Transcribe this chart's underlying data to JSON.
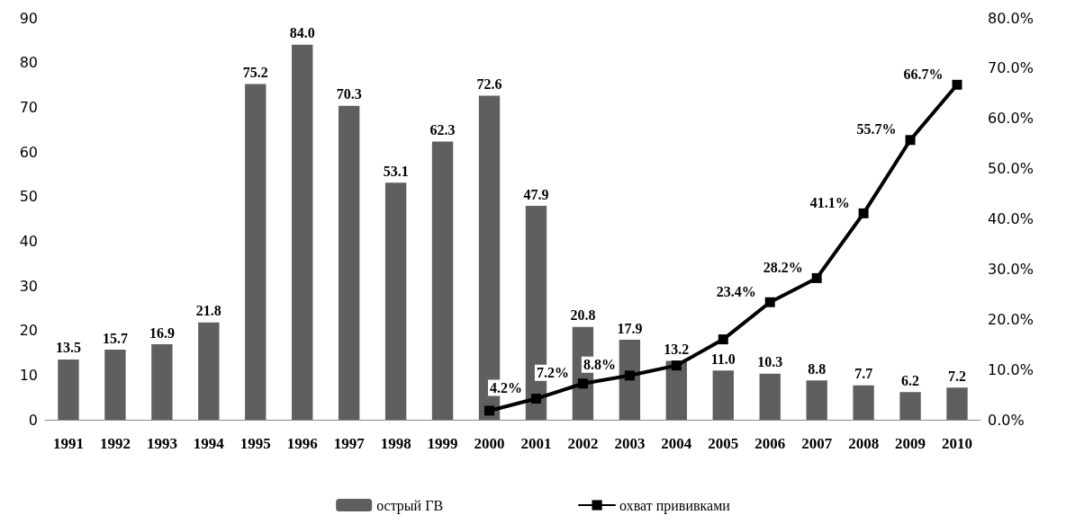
{
  "chart_data": {
    "type": "bar",
    "categories": [
      "1991",
      "1992",
      "1993",
      "1994",
      "1995",
      "1996",
      "1997",
      "1998",
      "1999",
      "2000",
      "2001",
      "2002",
      "2003",
      "2004",
      "2005",
      "2006",
      "2007",
      "2008",
      "2009",
      "2010"
    ],
    "series": [
      {
        "name": "острый ГВ",
        "color": "#5f5f5f",
        "values": [
          13.5,
          15.7,
          16.9,
          21.8,
          75.2,
          84.0,
          70.3,
          53.1,
          62.3,
          72.6,
          47.9,
          20.8,
          17.9,
          13.2,
          11.0,
          10.3,
          8.8,
          7.7,
          6.2,
          7.2
        ],
        "value_labels": [
          "13.5",
          "15.7",
          "16.9",
          "21.8",
          "75.2",
          "84.0",
          "70.3",
          "53.1",
          "62.3",
          "72.6",
          "47.9",
          "20.8",
          "17.9",
          "13.2",
          "11.0",
          "10.3",
          "8.8",
          "7.7",
          "6.2",
          "7.2"
        ]
      },
      {
        "name": "охват прививками",
        "type": "line",
        "axis": "y2",
        "color": "#000000",
        "values": [
          null,
          null,
          null,
          null,
          null,
          null,
          null,
          null,
          null,
          1.8,
          4.2,
          7.2,
          8.8,
          10.8,
          16.0,
          23.4,
          28.2,
          41.1,
          55.7,
          66.7
        ],
        "value_labels": [
          null,
          null,
          null,
          null,
          null,
          null,
          null,
          null,
          null,
          null,
          "4.2%",
          "7.2%",
          "8.8%",
          null,
          null,
          "23.4%",
          "28.2%",
          "41.1%",
          "55.7%",
          "66.7%"
        ]
      }
    ],
    "ylim": [
      0,
      90
    ],
    "yticks": [
      0,
      10,
      20,
      30,
      40,
      50,
      60,
      70,
      80,
      90
    ],
    "y2lim": [
      0,
      80
    ],
    "y2ticks": [
      {
        "value": 0,
        "label": "0.0%"
      },
      {
        "value": 10,
        "label": "10.0%"
      },
      {
        "value": 20,
        "label": "20.0%"
      },
      {
        "value": 30,
        "label": "30.0%"
      },
      {
        "value": 40,
        "label": "40.0%"
      },
      {
        "value": 50,
        "label": "50.0%"
      },
      {
        "value": 60,
        "label": "60.0%"
      },
      {
        "value": 70,
        "label": "70.0%"
      },
      {
        "value": 80,
        "label": "80.0%"
      }
    ],
    "grid": false,
    "legend": "bottom",
    "marker": "square",
    "line_style": "solid"
  }
}
